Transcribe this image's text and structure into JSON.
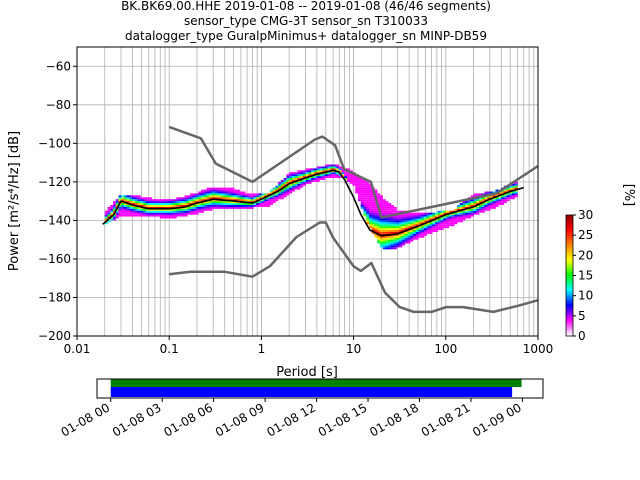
{
  "chart_data": [
    {
      "type": "heatmap",
      "title_lines": [
        "BK.BK69.00.HHE   2019-01-08 -- 2019-01-08  (46/46 segments)",
        "sensor_type CMG-3T sensor_sn T310033",
        "datalogger_type GuralpMinimus+ datalogger_sn MINP-DB59"
      ],
      "xlabel": "Period [s]",
      "ylabel": "Power [m²/s⁴/Hz] [dB]",
      "xscale": "log",
      "xlim": [
        0.01,
        1000
      ],
      "ylim": [
        -200,
        -50
      ],
      "xticks": [
        0.01,
        0.1,
        1,
        10,
        100,
        1000
      ],
      "xtick_labels": [
        "0.01",
        "0.1",
        "1",
        "10",
        "100",
        "1000"
      ],
      "yticks": [
        -200,
        -180,
        -160,
        -140,
        -120,
        -100,
        -80,
        -60
      ],
      "ytick_labels": [
        "−200",
        "−180",
        "−160",
        "−140",
        "−120",
        "−100",
        "−80",
        "−60"
      ],
      "grid": true,
      "colorbar": {
        "label": "[%]",
        "range": [
          0,
          30
        ],
        "ticks": [
          0,
          5,
          10,
          15,
          20,
          25,
          30
        ],
        "colormap": [
          "#ffffff",
          "#ff00ff",
          "#0000ff",
          "#00ffff",
          "#00ff00",
          "#ffff00",
          "#ff8000",
          "#ff0000",
          "#8b0000"
        ]
      },
      "series": [
        {
          "role": "mean",
          "color": "#000000",
          "x": [
            0.019,
            0.025,
            0.03,
            0.04,
            0.06,
            0.1,
            0.15,
            0.2,
            0.3,
            0.5,
            0.8,
            1,
            1.5,
            2,
            3,
            4,
            5,
            6,
            7,
            8,
            10,
            12,
            15,
            20,
            30,
            50,
            80,
            100,
            200,
            300,
            500,
            700
          ],
          "y": [
            -142,
            -137,
            -130,
            -132,
            -134,
            -134,
            -133,
            -131,
            -129,
            -130,
            -131,
            -129,
            -125,
            -121,
            -118,
            -116,
            -115,
            -114,
            -115,
            -119,
            -128,
            -137,
            -145,
            -148,
            -147,
            -143,
            -139,
            -137,
            -133,
            -129,
            -125,
            -123
          ]
        },
        {
          "role": "high-noise-model",
          "color": "#666666",
          "x": [
            0.1,
            0.22,
            0.32,
            0.8,
            3.8,
            4.6,
            6.3,
            7.9,
            15.4,
            20,
            354.8,
            10000
          ],
          "y": [
            -91.5,
            -97.4,
            -110.5,
            -120,
            -98,
            -96.5,
            -101,
            -113.5,
            -120,
            -138.5,
            -126,
            -80.1
          ]
        },
        {
          "role": "low-noise-model",
          "color": "#666666",
          "x": [
            0.1,
            0.17,
            0.4,
            0.8,
            1.24,
            2.4,
            4.3,
            5,
            6,
            10,
            12,
            15.6,
            21.9,
            31.6,
            45,
            70,
            101,
            154,
            328,
            600,
            10000
          ],
          "y": [
            -168,
            -166.7,
            -166.7,
            -169.2,
            -163.7,
            -148.6,
            -141.1,
            -141.1,
            -149,
            -163.8,
            -166.2,
            -162.1,
            -177.5,
            -185,
            -187.5,
            -187.5,
            -185,
            -185,
            -187.5,
            -184.4,
            -168
          ]
        },
        {
          "role": "pdf-cells",
          "color": "#00ff00",
          "x": [
            0.02,
            0.03,
            0.05,
            0.08,
            0.12,
            0.2,
            0.3,
            0.5,
            0.8,
            1.2,
            2,
            3,
            5,
            7,
            10,
            14,
            20,
            30,
            50,
            80,
            120,
            200,
            350,
            600
          ],
          "y_low": [
            -143,
            -138,
            -138,
            -139,
            -139,
            -137,
            -135,
            -134,
            -134,
            -133,
            -127,
            -122,
            -119,
            -118,
            -122,
            -142,
            -155,
            -155,
            -150,
            -146,
            -143,
            -138,
            -134,
            -128
          ],
          "y_high": [
            -136,
            -127,
            -128,
            -130,
            -129,
            -126,
            -123,
            -124,
            -127,
            -126,
            -116,
            -114,
            -112,
            -112,
            -115,
            -120,
            -128,
            -135,
            -137,
            -136,
            -135,
            -127,
            -125,
            -120
          ]
        }
      ]
    },
    {
      "type": "timeline",
      "xtick_labels": [
        "01-08 00",
        "01-08 03",
        "01-08 06",
        "01-08 09",
        "01-08 12",
        "01-08 15",
        "01-08 18",
        "01-08 21",
        "01-09 00"
      ],
      "xrange_hours": [
        -0.8,
        25.2
      ],
      "bars": [
        {
          "color": "#008000",
          "start_h": 0,
          "end_h": 23.95
        },
        {
          "color": "#0000ff",
          "start_h": 0,
          "end_h": 23.4
        }
      ]
    }
  ]
}
